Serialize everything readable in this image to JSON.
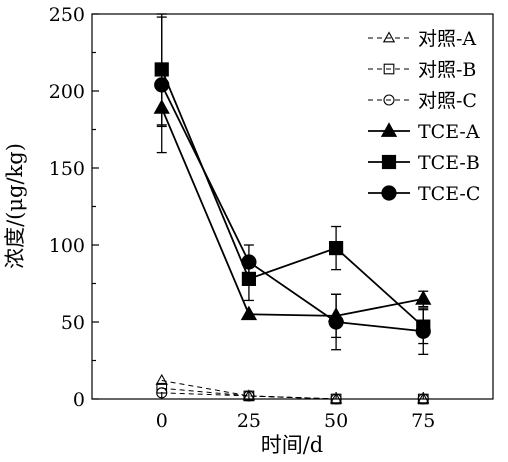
{
  "chart_data": {
    "type": "line",
    "title": "",
    "xlabel": "时间/d",
    "ylabel": "浓度/(μg/kg)",
    "x": [
      0,
      25,
      50,
      75
    ],
    "xticks": [
      "0",
      "25",
      "50",
      "75"
    ],
    "yticks": [
      "0",
      "50",
      "100",
      "150",
      "200",
      "250"
    ],
    "xlim": [
      -20,
      95
    ],
    "ylim": [
      0,
      250
    ],
    "grid": false,
    "legend_position": "top-right",
    "series": [
      {
        "name": "对照-A",
        "values": [
          12,
          2,
          0,
          0
        ],
        "marker": "triangle",
        "filled": false,
        "dashed": true
      },
      {
        "name": "对照-B",
        "values": [
          7,
          2,
          0,
          0
        ],
        "marker": "square",
        "filled": false,
        "dashed": true
      },
      {
        "name": "对照-C",
        "values": [
          4,
          2,
          0,
          0
        ],
        "marker": "circle",
        "filled": false,
        "dashed": true
      },
      {
        "name": "TCE-A",
        "values": [
          189,
          55,
          54,
          65
        ],
        "error": [
          12,
          0,
          14,
          5
        ],
        "marker": "triangle",
        "filled": true,
        "dashed": false
      },
      {
        "name": "TCE-B",
        "values": [
          214,
          78,
          98,
          47
        ],
        "error": [
          36,
          14,
          14,
          11
        ],
        "marker": "square",
        "filled": true,
        "dashed": false
      },
      {
        "name": "TCE-C",
        "values": [
          204,
          89,
          50,
          44
        ],
        "error": [
          44,
          11,
          18,
          15
        ],
        "marker": "circle",
        "filled": true,
        "dashed": false
      }
    ]
  }
}
